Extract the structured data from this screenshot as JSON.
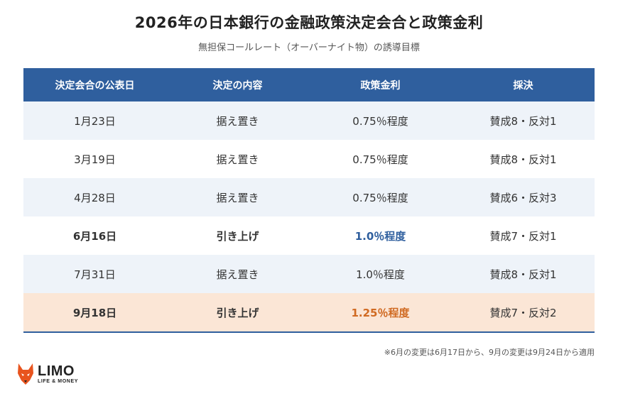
{
  "header": {
    "title": "2026年の日本銀行の金融政策決定会合と政策金利",
    "subtitle": "無担保コールレート（オーバーナイト物）の誘導目標"
  },
  "table": {
    "columns": [
      "決定会合の公表日",
      "決定の内容",
      "政策金利",
      "採決"
    ],
    "rows": [
      {
        "date": "1月23日",
        "decision": "据え置き",
        "rate": "0.75％程度",
        "vote": "賛成8・反対1"
      },
      {
        "date": "3月19日",
        "decision": "据え置き",
        "rate": "0.75％程度",
        "vote": "賛成8・反対1"
      },
      {
        "date": "4月28日",
        "decision": "据え置き",
        "rate": "0.75％程度",
        "vote": "賛成6・反対3"
      },
      {
        "date": "6月16日",
        "decision": "引き上げ",
        "rate": "1.0％程度",
        "vote": "賛成7・反対1"
      },
      {
        "date": "7月31日",
        "decision": "据え置き",
        "rate": "1.0％程度",
        "vote": "賛成8・反対1"
      },
      {
        "date": "9月18日",
        "decision": "引き上げ",
        "rate": "1.25％程度",
        "vote": "賛成7・反対2"
      }
    ]
  },
  "note": "※6月の変更は6月17日から、9月の変更は9月24日から適用",
  "logo": {
    "main": "LIMO",
    "sub": "LIFE & MONEY"
  },
  "colors": {
    "header_bg": "#2f5f9e",
    "alt_row_bg": "#eef3f9",
    "highlight_row_bg": "#fbe6d6",
    "rate_blue": "#2f5f9e",
    "rate_orange": "#d06a22",
    "logo_orange": "#e8541e"
  }
}
